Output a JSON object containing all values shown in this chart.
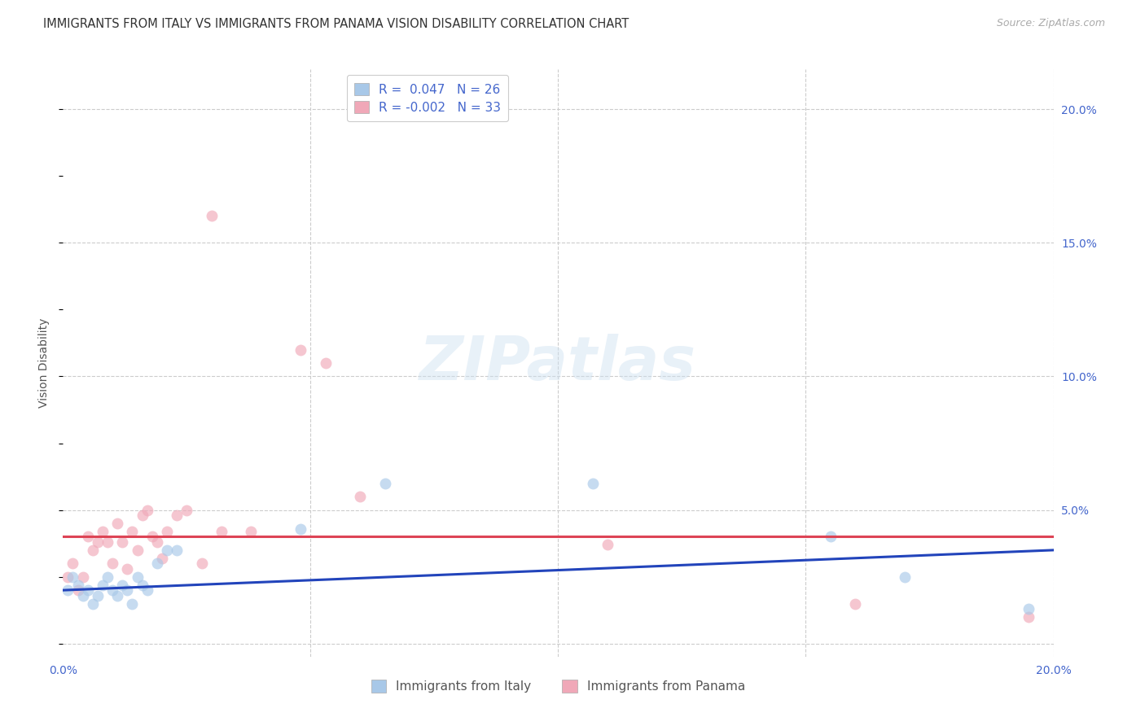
{
  "title": "IMMIGRANTS FROM ITALY VS IMMIGRANTS FROM PANAMA VISION DISABILITY CORRELATION CHART",
  "source": "Source: ZipAtlas.com",
  "ylabel": "Vision Disability",
  "watermark": "ZIPatlas",
  "xlim": [
    0.0,
    0.2
  ],
  "ylim": [
    -0.005,
    0.215
  ],
  "grid_color": "#cccccc",
  "italy_color": "#a8c8e8",
  "panama_color": "#f0a8b8",
  "italy_line_color": "#2244bb",
  "panama_line_color": "#dd4455",
  "legend_italy_r": "0.047",
  "legend_italy_n": "26",
  "legend_panama_r": "-0.002",
  "legend_panama_n": "33",
  "italy_scatter_x": [
    0.001,
    0.002,
    0.003,
    0.004,
    0.005,
    0.006,
    0.007,
    0.008,
    0.009,
    0.01,
    0.011,
    0.012,
    0.013,
    0.014,
    0.015,
    0.016,
    0.017,
    0.019,
    0.021,
    0.023,
    0.048,
    0.065,
    0.107,
    0.155,
    0.17,
    0.195
  ],
  "italy_scatter_y": [
    0.02,
    0.025,
    0.022,
    0.018,
    0.02,
    0.015,
    0.018,
    0.022,
    0.025,
    0.02,
    0.018,
    0.022,
    0.02,
    0.015,
    0.025,
    0.022,
    0.02,
    0.03,
    0.035,
    0.035,
    0.043,
    0.06,
    0.06,
    0.04,
    0.025,
    0.013
  ],
  "panama_scatter_x": [
    0.001,
    0.002,
    0.003,
    0.004,
    0.005,
    0.006,
    0.007,
    0.008,
    0.009,
    0.01,
    0.011,
    0.012,
    0.013,
    0.014,
    0.015,
    0.016,
    0.017,
    0.018,
    0.019,
    0.02,
    0.021,
    0.023,
    0.025,
    0.028,
    0.03,
    0.032,
    0.038,
    0.048,
    0.053,
    0.06,
    0.11,
    0.16,
    0.195
  ],
  "panama_scatter_y": [
    0.025,
    0.03,
    0.02,
    0.025,
    0.04,
    0.035,
    0.038,
    0.042,
    0.038,
    0.03,
    0.045,
    0.038,
    0.028,
    0.042,
    0.035,
    0.048,
    0.05,
    0.04,
    0.038,
    0.032,
    0.042,
    0.048,
    0.05,
    0.03,
    0.16,
    0.042,
    0.042,
    0.11,
    0.105,
    0.055,
    0.037,
    0.015,
    0.01
  ],
  "italy_trend_x": [
    0.0,
    0.2
  ],
  "italy_trend_y": [
    0.02,
    0.035
  ],
  "panama_trend_x": [
    0.0,
    0.2
  ],
  "panama_trend_y": [
    0.04,
    0.04
  ],
  "marker_size": 100,
  "marker_alpha": 0.65,
  "background_color": "#ffffff",
  "title_fontsize": 10.5,
  "axis_label_fontsize": 10,
  "tick_fontsize": 10,
  "legend_fontsize": 11
}
